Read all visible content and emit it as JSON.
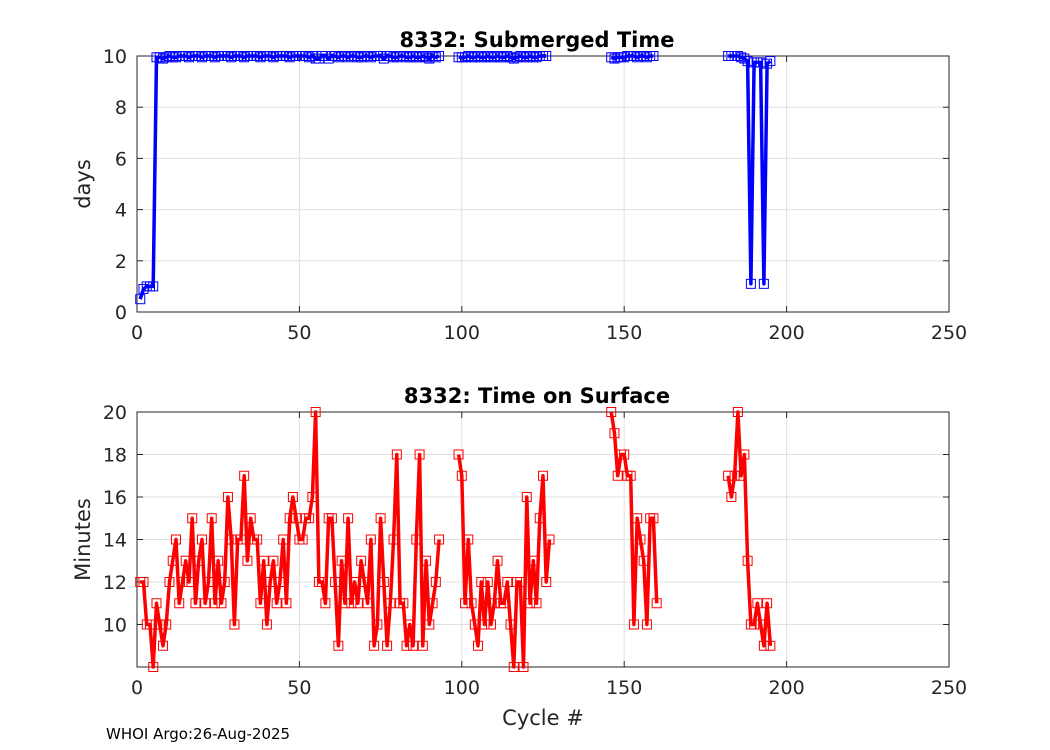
{
  "footer": "WHOI Argo:26-Aug-2025",
  "chart_data": [
    {
      "type": "line",
      "title": "8332: Submerged Time",
      "xlabel": "",
      "ylabel": "days",
      "xlim": [
        0,
        250
      ],
      "ylim": [
        0,
        10
      ],
      "xticks": [
        0,
        50,
        100,
        150,
        200,
        250
      ],
      "yticks": [
        0,
        2,
        4,
        6,
        8,
        10
      ],
      "grid": true,
      "color": "#0000ff",
      "marker": "square",
      "segments": [
        {
          "x": [
            1,
            2,
            3,
            4,
            5,
            6,
            7,
            8,
            9,
            10,
            11,
            12,
            13,
            14,
            15,
            16,
            17,
            18,
            19,
            20,
            21,
            22,
            23,
            24,
            25,
            26,
            27,
            28,
            29,
            30,
            31,
            32,
            33,
            34,
            35,
            36,
            37,
            38,
            39,
            40,
            41,
            42,
            43,
            44,
            45,
            46,
            47,
            48,
            49,
            50,
            51,
            52,
            53,
            54,
            55,
            56,
            57,
            58,
            59,
            60,
            61,
            62,
            63,
            64,
            65,
            66,
            67,
            68,
            69,
            70,
            71,
            72,
            73,
            74,
            75,
            76,
            77,
            78,
            79,
            80,
            81,
            82,
            83,
            84,
            85,
            86,
            87,
            88,
            89,
            90,
            91,
            92,
            93
          ],
          "y": [
            0.5,
            0.9,
            1.0,
            1.0,
            1.0,
            9.95,
            9.95,
            9.9,
            9.95,
            10.0,
            9.95,
            9.95,
            10.0,
            10.0,
            10.0,
            9.95,
            10.0,
            10.0,
            10.0,
            9.95,
            10.0,
            10.0,
            10.0,
            9.95,
            10.0,
            10.0,
            10.0,
            10.0,
            9.95,
            10.0,
            10.0,
            10.0,
            9.95,
            10.0,
            10.0,
            10.0,
            10.0,
            9.95,
            10.0,
            10.0,
            10.0,
            9.95,
            10.0,
            10.0,
            10.0,
            10.0,
            9.95,
            10.0,
            10.0,
            10.0,
            10.0,
            10.0,
            9.95,
            10.0,
            9.9,
            9.9,
            10.0,
            10.0,
            9.9,
            10.0,
            10.0,
            9.95,
            10.0,
            10.0,
            9.95,
            10.0,
            10.0,
            9.95,
            9.95,
            10.0,
            10.0,
            9.95,
            10.0,
            10.0,
            10.0,
            9.9,
            10.0,
            10.0,
            9.95,
            9.95,
            10.0,
            10.0,
            9.95,
            9.95,
            10.0,
            9.95,
            9.95,
            10.0,
            9.95,
            9.9,
            10.0,
            9.95,
            10.0
          ]
        },
        {
          "x": [
            99,
            100,
            101,
            102,
            103,
            104,
            105,
            106,
            107,
            108,
            109,
            110,
            111,
            112,
            113,
            114,
            115,
            116,
            117,
            118,
            119,
            120,
            121,
            122,
            123,
            124,
            125,
            126
          ],
          "y": [
            9.95,
            9.95,
            9.95,
            10.0,
            9.95,
            9.95,
            10.0,
            9.95,
            9.95,
            10.0,
            9.95,
            9.95,
            10.0,
            9.95,
            9.95,
            10.0,
            9.95,
            9.9,
            9.95,
            10.0,
            9.95,
            9.95,
            10.0,
            9.95,
            9.95,
            10.0,
            10.0,
            10.0
          ]
        },
        {
          "x": [
            146,
            147,
            148,
            149,
            150,
            151,
            152,
            153,
            154,
            155,
            156,
            157,
            158,
            159
          ],
          "y": [
            9.95,
            9.9,
            9.95,
            9.95,
            9.95,
            10.0,
            10.0,
            10.0,
            9.95,
            10.0,
            10.0,
            9.95,
            10.0,
            10.0
          ]
        },
        {
          "x": [
            182,
            183,
            184,
            185,
            186,
            187,
            188,
            189,
            190,
            191,
            192,
            193,
            194,
            195
          ],
          "y": [
            10.0,
            10.0,
            10.0,
            10.0,
            9.95,
            9.9,
            9.8,
            1.1,
            9.75,
            9.75,
            9.75,
            1.1,
            9.7,
            9.8
          ]
        }
      ]
    },
    {
      "type": "line",
      "title": "8332: Time on Surface",
      "xlabel": "Cycle #",
      "ylabel": "Minutes",
      "xlim": [
        0,
        250
      ],
      "ylim": [
        8,
        20
      ],
      "xticks": [
        0,
        50,
        100,
        150,
        200,
        250
      ],
      "yticks": [
        10,
        12,
        14,
        16,
        18,
        20
      ],
      "grid": true,
      "color": "#ff0000",
      "marker": "square",
      "segments": [
        {
          "x": [
            1,
            2,
            3,
            4,
            5,
            6,
            7,
            8,
            9,
            10,
            11,
            12,
            13,
            14,
            15,
            16,
            17,
            18,
            19,
            20,
            21,
            22,
            23,
            24,
            25,
            26,
            27,
            28,
            29,
            30,
            31,
            32,
            33,
            34,
            35,
            36,
            37,
            38,
            39,
            40,
            41,
            42,
            43,
            44,
            45,
            46,
            47,
            48,
            49,
            50,
            51,
            52,
            53,
            54,
            55,
            56,
            57,
            58,
            59,
            60,
            61,
            62,
            63,
            64,
            65,
            66,
            67,
            68,
            69,
            70,
            71,
            72,
            73,
            74,
            75,
            76,
            77,
            78,
            79,
            80,
            81,
            82,
            83,
            84,
            85,
            86,
            87,
            88,
            89,
            90,
            91,
            92,
            93
          ],
          "y": [
            12,
            12,
            10,
            10,
            8,
            11,
            10,
            9,
            10,
            12,
            13,
            14,
            11,
            12,
            13,
            12,
            15,
            11,
            13,
            14,
            11,
            12,
            15,
            11,
            13,
            11,
            12,
            16,
            14,
            10,
            14,
            14,
            17,
            13,
            15,
            14,
            14,
            11,
            13,
            10,
            12,
            13,
            11,
            12,
            14,
            11,
            15,
            16,
            15,
            14,
            14,
            15,
            15,
            16,
            20,
            12,
            12,
            11,
            15,
            15,
            12,
            9,
            13,
            11,
            15,
            11,
            12,
            11,
            13,
            12,
            11,
            14,
            9,
            10,
            15,
            12,
            9,
            11,
            14,
            18,
            11,
            11,
            9,
            10,
            9,
            14,
            18,
            9,
            13,
            10,
            11,
            12,
            14
          ]
        },
        {
          "x": [
            99,
            100,
            101,
            102,
            103,
            104,
            105,
            106,
            107,
            108,
            109,
            110,
            111,
            112,
            113,
            114,
            115,
            116,
            117,
            118,
            119,
            120,
            121,
            122,
            123,
            124,
            125,
            126,
            127
          ],
          "y": [
            18,
            17,
            11,
            14,
            11,
            10,
            9,
            12,
            10,
            12,
            10,
            11,
            13,
            11,
            11,
            12,
            10,
            8,
            12,
            12,
            8,
            16,
            11,
            13,
            11,
            15,
            17,
            12,
            14
          ]
        },
        {
          "x": [
            146,
            147,
            148,
            149,
            150,
            151,
            152,
            153,
            154,
            155,
            156,
            157,
            158,
            159,
            160
          ],
          "y": [
            20,
            19,
            17,
            18,
            18,
            17,
            17,
            10,
            15,
            14,
            13,
            10,
            15,
            15,
            11
          ]
        },
        {
          "x": [
            182,
            183,
            184,
            185,
            186,
            187,
            188,
            189,
            190,
            191,
            192,
            193,
            194,
            195
          ],
          "y": [
            17,
            16,
            17,
            20,
            17,
            18,
            13,
            10,
            10,
            11,
            10,
            9,
            11,
            9
          ]
        }
      ]
    }
  ]
}
